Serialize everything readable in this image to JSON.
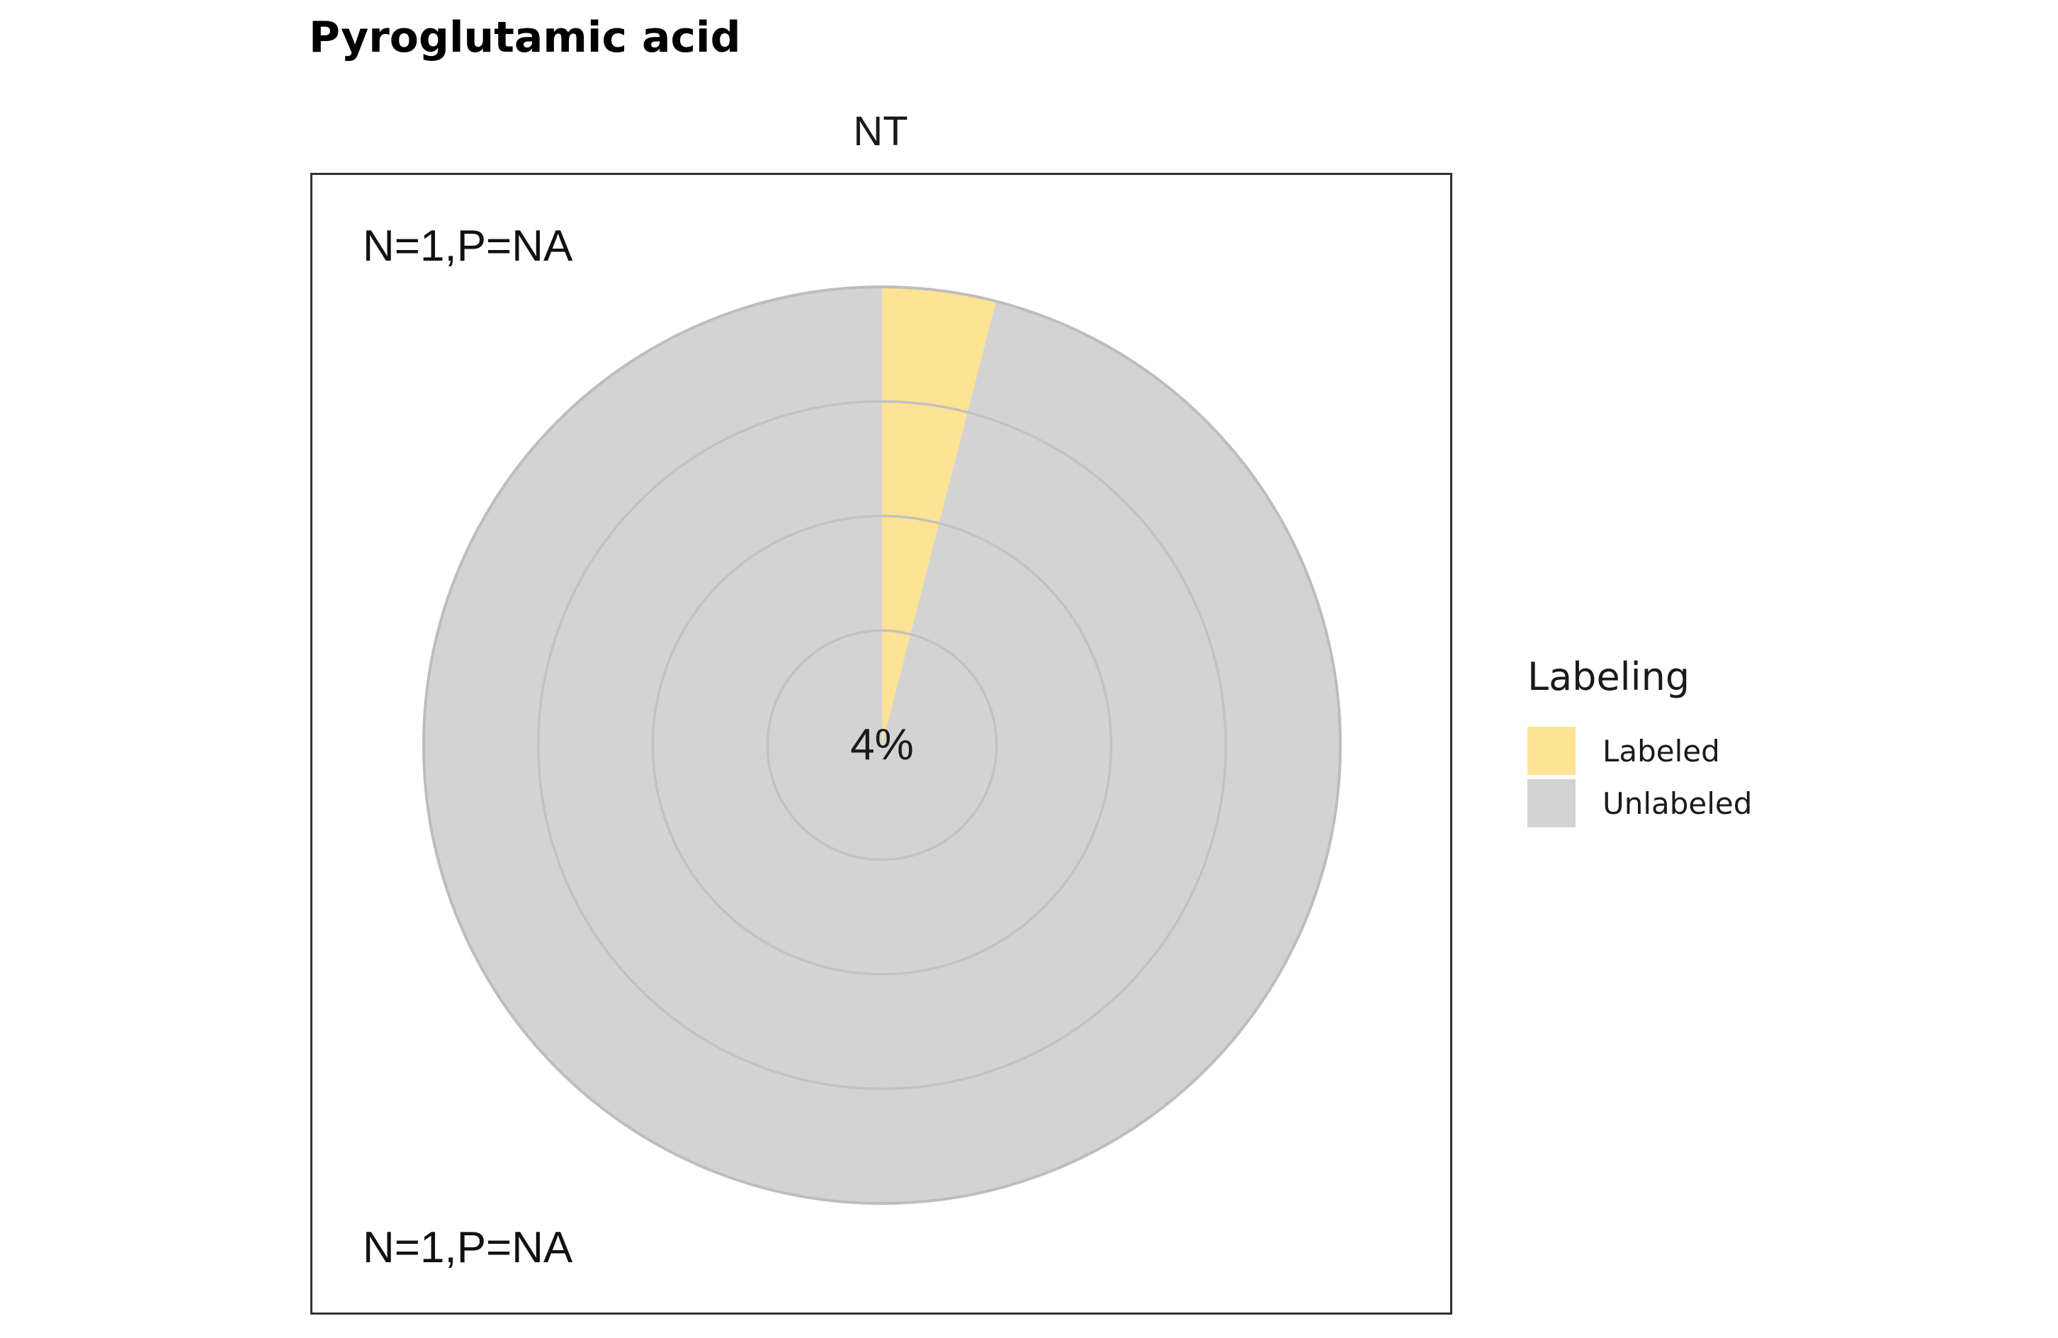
{
  "chart_data": {
    "type": "pie",
    "title": "Pyroglutamic acid",
    "facet": "NT",
    "slices": [
      {
        "label": "Labeled",
        "value": 4,
        "color": "#fde393"
      },
      {
        "label": "Unlabeled",
        "value": 96,
        "color": "#d3d3d3"
      }
    ],
    "center_label": "4%",
    "annotations": [
      "N=1,P=NA",
      "N=1,P=NA"
    ],
    "legend": {
      "title": "Labeling",
      "position": "right",
      "entries": [
        {
          "label": "Labeled",
          "color": "#fde393"
        },
        {
          "label": "Unlabeled",
          "color": "#d3d3d3"
        }
      ]
    },
    "grid": true
  }
}
